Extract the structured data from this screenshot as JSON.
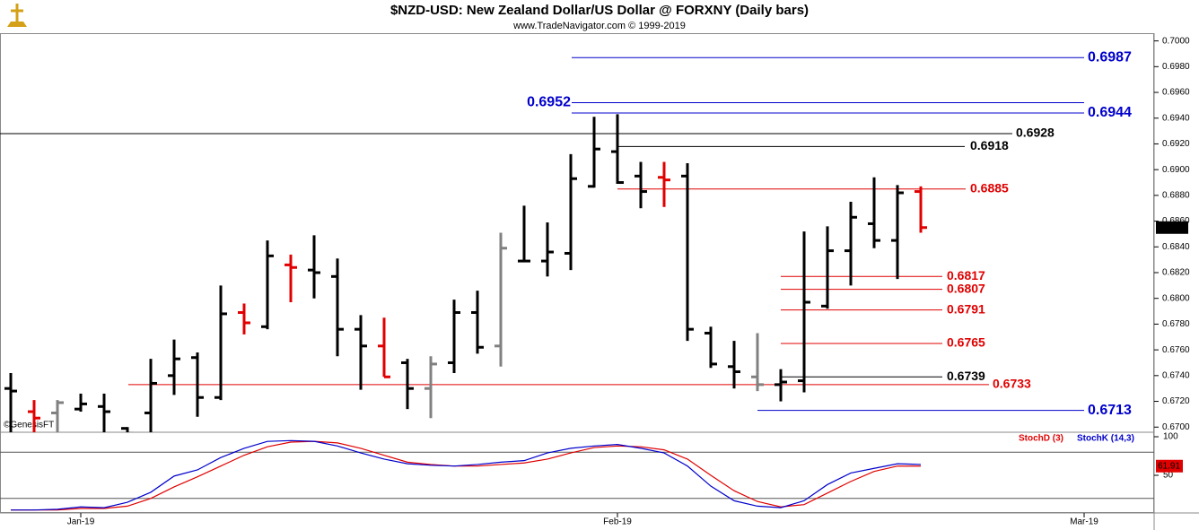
{
  "chart_data": [
    {
      "type": "ohlc",
      "title": "$NZD-USD:  New Zealand Dollar/US Dollar @ FORXNY  (Daily bars)",
      "subtitle": "www.TradeNavigator.com © 1999-2019",
      "watermark": "©GenesisFT",
      "categories": [
        null,
        null,
        null,
        "Jan-19",
        null,
        null,
        null,
        null,
        null,
        null,
        null,
        null,
        null,
        null,
        null,
        null,
        null,
        null,
        null,
        null,
        null,
        null,
        null,
        null,
        null,
        null,
        "Feb-19",
        null,
        null,
        null,
        null,
        null,
        null,
        null,
        null,
        null,
        null,
        null,
        null,
        null,
        null,
        null,
        null,
        null,
        null,
        null,
        "Mar-19"
      ],
      "open": [
        0.673,
        0.6712,
        0.6711,
        0.6714,
        0.6716,
        0.6699,
        0.6711,
        0.674,
        0.6754,
        0.6723,
        0.6789,
        0.6778,
        0.6826,
        0.6822,
        0.6817,
        0.6776,
        0.6763,
        0.675,
        0.673,
        0.675,
        0.6789,
        0.6763,
        0.6829,
        0.6829,
        0.6835,
        0.6887,
        0.6914,
        0.6895,
        0.6894,
        0.6895,
        0.6773,
        0.6747,
        0.6739,
        0.6733,
        0.6736,
        0.6794,
        0.6837,
        0.6858,
        0.6845,
        0.6883,
        null,
        null,
        null,
        null,
        null,
        null,
        null
      ],
      "high": [
        0.6742,
        0.6721,
        0.6721,
        0.6726,
        0.6726,
        0.67,
        0.6753,
        0.6768,
        0.6758,
        0.681,
        0.6796,
        0.6845,
        0.6834,
        0.6849,
        0.6831,
        0.6787,
        0.6785,
        0.6753,
        0.6755,
        0.6799,
        0.6806,
        0.6851,
        0.6872,
        0.6859,
        0.6912,
        0.6941,
        0.6943,
        0.6906,
        0.6906,
        0.6905,
        0.6778,
        0.6767,
        0.6773,
        0.6745,
        0.6852,
        0.6856,
        0.6875,
        0.6894,
        0.6888,
        0.6887,
        null,
        null,
        null,
        null,
        null,
        null,
        null
      ],
      "low": [
        0.669,
        0.6692,
        0.6693,
        0.6712,
        0.6695,
        0.669,
        0.6695,
        0.6725,
        0.6708,
        0.6721,
        0.6772,
        0.6776,
        0.6797,
        0.68,
        0.6755,
        0.6729,
        0.6739,
        0.6714,
        0.6707,
        0.6742,
        0.6757,
        0.6747,
        0.6828,
        0.6817,
        0.6822,
        0.6886,
        0.6889,
        0.687,
        0.6871,
        0.6767,
        0.6746,
        0.673,
        0.6728,
        0.672,
        0.6727,
        0.6792,
        0.681,
        0.6839,
        0.6815,
        0.6851,
        null,
        null,
        null,
        null,
        null,
        null,
        null
      ],
      "close": [
        0.6728,
        0.6707,
        0.6719,
        0.6718,
        0.6712,
        0.6695,
        0.6734,
        0.6753,
        0.6723,
        0.6788,
        0.6781,
        0.6833,
        0.6824,
        0.682,
        0.6776,
        0.6763,
        0.6739,
        0.673,
        0.6749,
        0.6789,
        0.6762,
        0.6839,
        0.6829,
        0.6836,
        0.6893,
        0.6916,
        0.689,
        0.6883,
        0.6892,
        0.6776,
        0.6749,
        0.6743,
        0.6733,
        0.6735,
        0.6797,
        0.6837,
        0.6863,
        0.6845,
        0.6882,
        0.6855,
        null,
        null,
        null,
        null,
        null,
        null,
        null
      ],
      "bar_colors": [
        "#000000",
        "#e00000",
        "#808080",
        "#000000",
        "#000000",
        "#000000",
        "#000000",
        "#000000",
        "#000000",
        "#000000",
        "#e00000",
        "#000000",
        "#e00000",
        "#000000",
        "#000000",
        "#000000",
        "#e00000",
        "#000000",
        "#808080",
        "#000000",
        "#000000",
        "#808080",
        "#000000",
        "#000000",
        "#000000",
        "#000000",
        "#000000",
        "#000000",
        "#e00000",
        "#000000",
        "#000000",
        "#000000",
        "#808080",
        "#000000",
        "#000000",
        "#000000",
        "#000000",
        "#000000",
        "#000000",
        "#e00000",
        null,
        null,
        null,
        null,
        null,
        null,
        null
      ],
      "ylim": [
        0.6696,
        0.7006
      ],
      "yticks": [
        {
          "value": 0.7,
          "label": "0.7000"
        },
        {
          "value": 0.698,
          "label": "0.6980"
        },
        {
          "value": 0.696,
          "label": "0.6960"
        },
        {
          "value": 0.694,
          "label": "0.6940"
        },
        {
          "value": 0.692,
          "label": "0.6920"
        },
        {
          "value": 0.69,
          "label": "0.6900"
        },
        {
          "value": 0.688,
          "label": "0.6880"
        },
        {
          "value": 0.686,
          "label": "0.6860"
        },
        {
          "value": 0.684,
          "label": "0.6840"
        },
        {
          "value": 0.682,
          "label": "0.6820"
        },
        {
          "value": 0.68,
          "label": "0.6800"
        },
        {
          "value": 0.678,
          "label": "0.6780"
        },
        {
          "value": 0.676,
          "label": "0.6760"
        },
        {
          "value": 0.674,
          "label": "0.6740"
        },
        {
          "value": 0.672,
          "label": "0.6720"
        },
        {
          "value": 0.67,
          "label": "0.6700"
        }
      ],
      "levels": [
        {
          "value": 0.6987,
          "color": "#0000cc"
        },
        {
          "value": 0.6952,
          "color": "#0000cc"
        },
        {
          "value": 0.6944,
          "color": "#0000cc"
        },
        {
          "value": 0.6928,
          "color": "#000000"
        },
        {
          "value": 0.6918,
          "color": "#000000"
        },
        {
          "value": 0.6885,
          "color": "#e00000"
        },
        {
          "value": 0.6817,
          "color": "#e00000"
        },
        {
          "value": 0.6807,
          "color": "#e00000"
        },
        {
          "value": 0.6791,
          "color": "#e00000"
        },
        {
          "value": 0.6765,
          "color": "#e00000"
        },
        {
          "value": 0.6739,
          "color": "#000000"
        },
        {
          "value": 0.6733,
          "color": "#e00000"
        },
        {
          "value": 0.6713,
          "color": "#0000cc"
        }
      ]
    },
    {
      "type": "line",
      "ylim": [
        0,
        100
      ],
      "yticks": [
        100,
        50
      ],
      "ref_lines": [
        80,
        20
      ],
      "series": [
        {
          "name": "StochD (3)",
          "color": "#e00000",
          "value_labels": {
            "39": "61.91"
          },
          "values": [
            5,
            5,
            5,
            7,
            7,
            10,
            20,
            35,
            48,
            62,
            76,
            87,
            93,
            94,
            92,
            85,
            76,
            67,
            64,
            62,
            62,
            64,
            66,
            71,
            79,
            86,
            88,
            87,
            83,
            71,
            50,
            30,
            16,
            9,
            12,
            27,
            42,
            55,
            62,
            61.91,
            null,
            null,
            null,
            null,
            null,
            null,
            null
          ]
        },
        {
          "name": "StochK (14,3)",
          "color": "#0000cc",
          "values": [
            5,
            5,
            6,
            9,
            8,
            15,
            28,
            49,
            57,
            73,
            85,
            94,
            95,
            94,
            88,
            79,
            71,
            65,
            63,
            62,
            64,
            67,
            69,
            79,
            85,
            88,
            90,
            85,
            79,
            62,
            36,
            17,
            10,
            8,
            17,
            38,
            53,
            59,
            65,
            64,
            null,
            null,
            null,
            null,
            null,
            null,
            null
          ]
        }
      ]
    }
  ]
}
